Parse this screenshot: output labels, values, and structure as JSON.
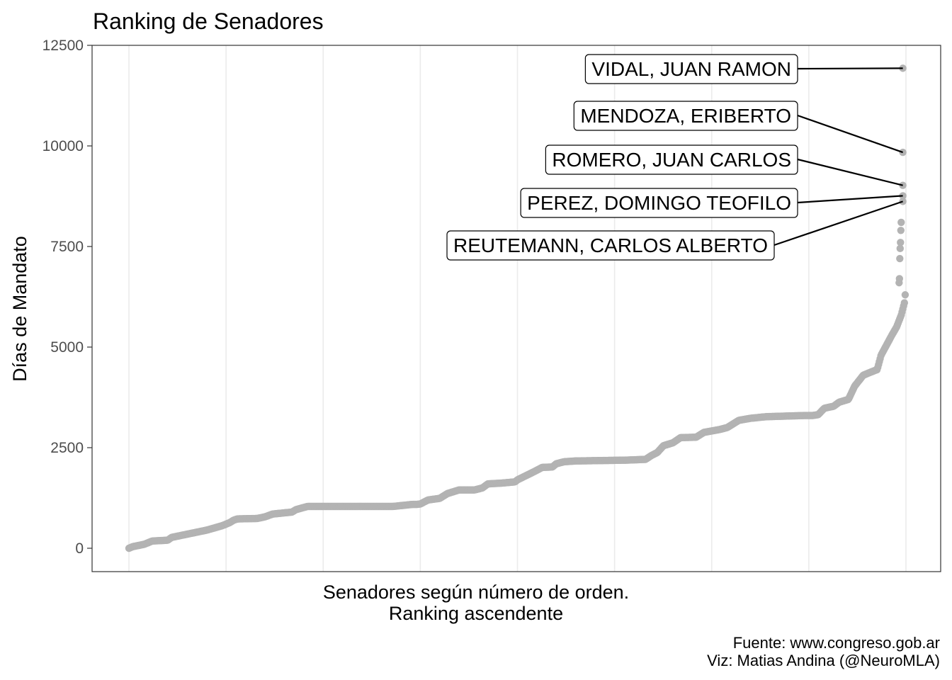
{
  "chart_data": {
    "type": "scatter",
    "title": "Ranking de Senadores",
    "xlabel_line1": "Senadores según número de orden.",
    "xlabel_line2": "Ranking ascendente",
    "ylabel": "Días de Mandato",
    "caption_line1": "Fuente: www.congreso.gob.ar",
    "caption_line2": "Viz: Matias Andina (@NeuroMLA)",
    "ylim": [
      -600,
      12500
    ],
    "y_ticks": [
      0,
      2500,
      5000,
      7500,
      10000,
      12500
    ],
    "y_tick_labels": [
      "0",
      "2500",
      "5000",
      "7500",
      "10000",
      "12500"
    ],
    "xlim": [
      0,
      1050
    ],
    "x_gridlines": [
      0,
      125,
      250,
      375,
      500,
      625,
      750,
      875,
      1000
    ],
    "x_ticks_labeled": false,
    "grid": true,
    "point_color": "#b3b3b3",
    "n_points": 1000,
    "curve_knots": [
      [
        0,
        0
      ],
      [
        5,
        40
      ],
      [
        20,
        100
      ],
      [
        30,
        180
      ],
      [
        50,
        200
      ],
      [
        55,
        270
      ],
      [
        100,
        450
      ],
      [
        120,
        560
      ],
      [
        130,
        640
      ],
      [
        135,
        700
      ],
      [
        140,
        730
      ],
      [
        165,
        740
      ],
      [
        175,
        780
      ],
      [
        185,
        850
      ],
      [
        210,
        900
      ],
      [
        215,
        960
      ],
      [
        230,
        1040
      ],
      [
        340,
        1040
      ],
      [
        370,
        1090
      ],
      [
        365,
        1090
      ],
      [
        375,
        1100
      ],
      [
        385,
        1200
      ],
      [
        400,
        1240
      ],
      [
        410,
        1360
      ],
      [
        425,
        1450
      ],
      [
        445,
        1450
      ],
      [
        455,
        1500
      ],
      [
        462,
        1600
      ],
      [
        480,
        1620
      ],
      [
        497,
        1650
      ],
      [
        500,
        1700
      ],
      [
        520,
        1890
      ],
      [
        532,
        2010
      ],
      [
        545,
        2020
      ],
      [
        550,
        2100
      ],
      [
        560,
        2150
      ],
      [
        575,
        2170
      ],
      [
        640,
        2190
      ],
      [
        665,
        2210
      ],
      [
        672,
        2300
      ],
      [
        680,
        2380
      ],
      [
        688,
        2550
      ],
      [
        700,
        2620
      ],
      [
        710,
        2750
      ],
      [
        730,
        2760
      ],
      [
        740,
        2880
      ],
      [
        760,
        2950
      ],
      [
        770,
        3000
      ],
      [
        785,
        3180
      ],
      [
        800,
        3230
      ],
      [
        820,
        3270
      ],
      [
        880,
        3300
      ],
      [
        870,
        3300
      ],
      [
        887,
        3320
      ],
      [
        895,
        3480
      ],
      [
        907,
        3530
      ],
      [
        914,
        3630
      ],
      [
        926,
        3700
      ],
      [
        934,
        4030
      ],
      [
        945,
        4300
      ],
      [
        955,
        4380
      ],
      [
        963,
        4440
      ],
      [
        968,
        4800
      ],
      [
        975,
        5050
      ],
      [
        982,
        5300
      ],
      [
        988,
        5500
      ],
      [
        994,
        5800
      ],
      [
        998,
        6100
      ],
      [
        1000,
        6500
      ]
    ],
    "tail_values": [
      6600,
      6700,
      7200,
      7450,
      7600,
      7900,
      8100
    ],
    "highlighted": [
      {
        "name": "VIDAL,  JUAN RAMON",
        "value": 11930
      },
      {
        "name": "MENDOZA,  ERIBERTO",
        "value": 9840
      },
      {
        "name": "ROMERO, JUAN CARLOS",
        "value": 9020
      },
      {
        "name": "PEREZ,  DOMINGO TEOFILO",
        "value": 8760
      },
      {
        "name": "REUTEMANN, CARLOS ALBERTO",
        "value": 8620
      }
    ]
  }
}
